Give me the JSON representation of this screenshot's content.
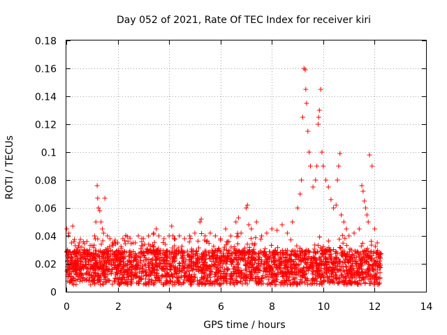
{
  "chart_data": {
    "type": "scatter",
    "title": "Day 052 of 2021, Rate Of TEC Index for receiver kiri",
    "xlabel": "GPS time / hours",
    "ylabel": "ROTI / TECUs",
    "xlim": [
      0,
      14
    ],
    "ylim": [
      0,
      0.18
    ],
    "xticks": [
      0,
      2,
      4,
      6,
      8,
      10,
      12,
      14
    ],
    "xtick_labels": [
      "0",
      "2",
      "4",
      "6",
      "8",
      "10",
      "12",
      "14"
    ],
    "yticks": [
      0,
      0.02,
      0.04,
      0.06,
      0.08,
      0.1,
      0.12,
      0.14,
      0.16,
      0.18
    ],
    "ytick_labels": [
      "0",
      "0.02",
      "0.04",
      "0.06",
      "0.08",
      "0.1",
      "0.12",
      "0.14",
      "0.16",
      "0.18"
    ],
    "grid": true,
    "marker": "+",
    "color": "#ff0000",
    "series": [
      {
        "name": "ROTI",
        "x": [
          0.02,
          0.05,
          0.08,
          0.1,
          0.15,
          0.2,
          0.25,
          0.3,
          0.35,
          0.4,
          0.5,
          0.6,
          0.7,
          0.8,
          0.9,
          1.0,
          1.1,
          1.15,
          1.2,
          1.22,
          1.25,
          1.3,
          1.35,
          1.4,
          1.45,
          1.5,
          1.6,
          1.7,
          1.8,
          1.9,
          2.0,
          2.2,
          2.4,
          2.6,
          2.8,
          3.0,
          3.2,
          3.4,
          3.5,
          3.6,
          3.8,
          4.0,
          4.1,
          4.2,
          4.4,
          4.6,
          4.8,
          5.0,
          5.2,
          5.25,
          5.4,
          5.6,
          5.8,
          6.0,
          6.2,
          6.4,
          6.6,
          6.7,
          6.8,
          7.0,
          7.05,
          7.1,
          7.2,
          7.4,
          7.6,
          7.8,
          8.0,
          8.2,
          8.4,
          8.6,
          8.8,
          9.0,
          9.1,
          9.15,
          9.2,
          9.25,
          9.3,
          9.32,
          9.35,
          9.4,
          9.45,
          9.5,
          9.6,
          9.7,
          9.75,
          9.8,
          9.82,
          9.85,
          9.9,
          9.95,
          10.0,
          10.1,
          10.2,
          10.3,
          10.4,
          10.5,
          10.55,
          10.6,
          10.65,
          10.7,
          10.8,
          10.9,
          11.0,
          11.2,
          11.4,
          11.5,
          11.55,
          11.6,
          11.65,
          11.7,
          11.75,
          11.8,
          11.9,
          12.0,
          12.1,
          12.2
        ],
        "y": [
          0.045,
          0.03,
          0.04,
          0.042,
          0.028,
          0.035,
          0.047,
          0.036,
          0.033,
          0.03,
          0.035,
          0.032,
          0.03,
          0.036,
          0.03,
          0.033,
          0.04,
          0.05,
          0.076,
          0.067,
          0.06,
          0.058,
          0.05,
          0.045,
          0.042,
          0.067,
          0.04,
          0.038,
          0.035,
          0.037,
          0.035,
          0.038,
          0.036,
          0.035,
          0.04,
          0.038,
          0.04,
          0.042,
          0.045,
          0.04,
          0.038,
          0.04,
          0.047,
          0.038,
          0.04,
          0.038,
          0.04,
          0.042,
          0.05,
          0.052,
          0.04,
          0.042,
          0.04,
          0.038,
          0.045,
          0.04,
          0.05,
          0.053,
          0.042,
          0.06,
          0.062,
          0.048,
          0.045,
          0.05,
          0.04,
          0.042,
          0.045,
          0.044,
          0.048,
          0.042,
          0.05,
          0.06,
          0.07,
          0.08,
          0.125,
          0.16,
          0.159,
          0.145,
          0.135,
          0.115,
          0.1,
          0.09,
          0.075,
          0.08,
          0.09,
          0.12,
          0.125,
          0.13,
          0.145,
          0.1,
          0.09,
          0.08,
          0.075,
          0.066,
          0.06,
          0.062,
          0.08,
          0.09,
          0.099,
          0.055,
          0.05,
          0.045,
          0.04,
          0.042,
          0.045,
          0.076,
          0.072,
          0.065,
          0.06,
          0.055,
          0.05,
          0.098,
          0.09,
          0.045,
          0.035,
          0.028
        ]
      }
    ],
    "band": {
      "x_start": 0.0,
      "x_end": 12.25,
      "typical_min": 0.005,
      "typical_max": 0.03,
      "note": "dense cloud of markers across the observation window"
    }
  }
}
